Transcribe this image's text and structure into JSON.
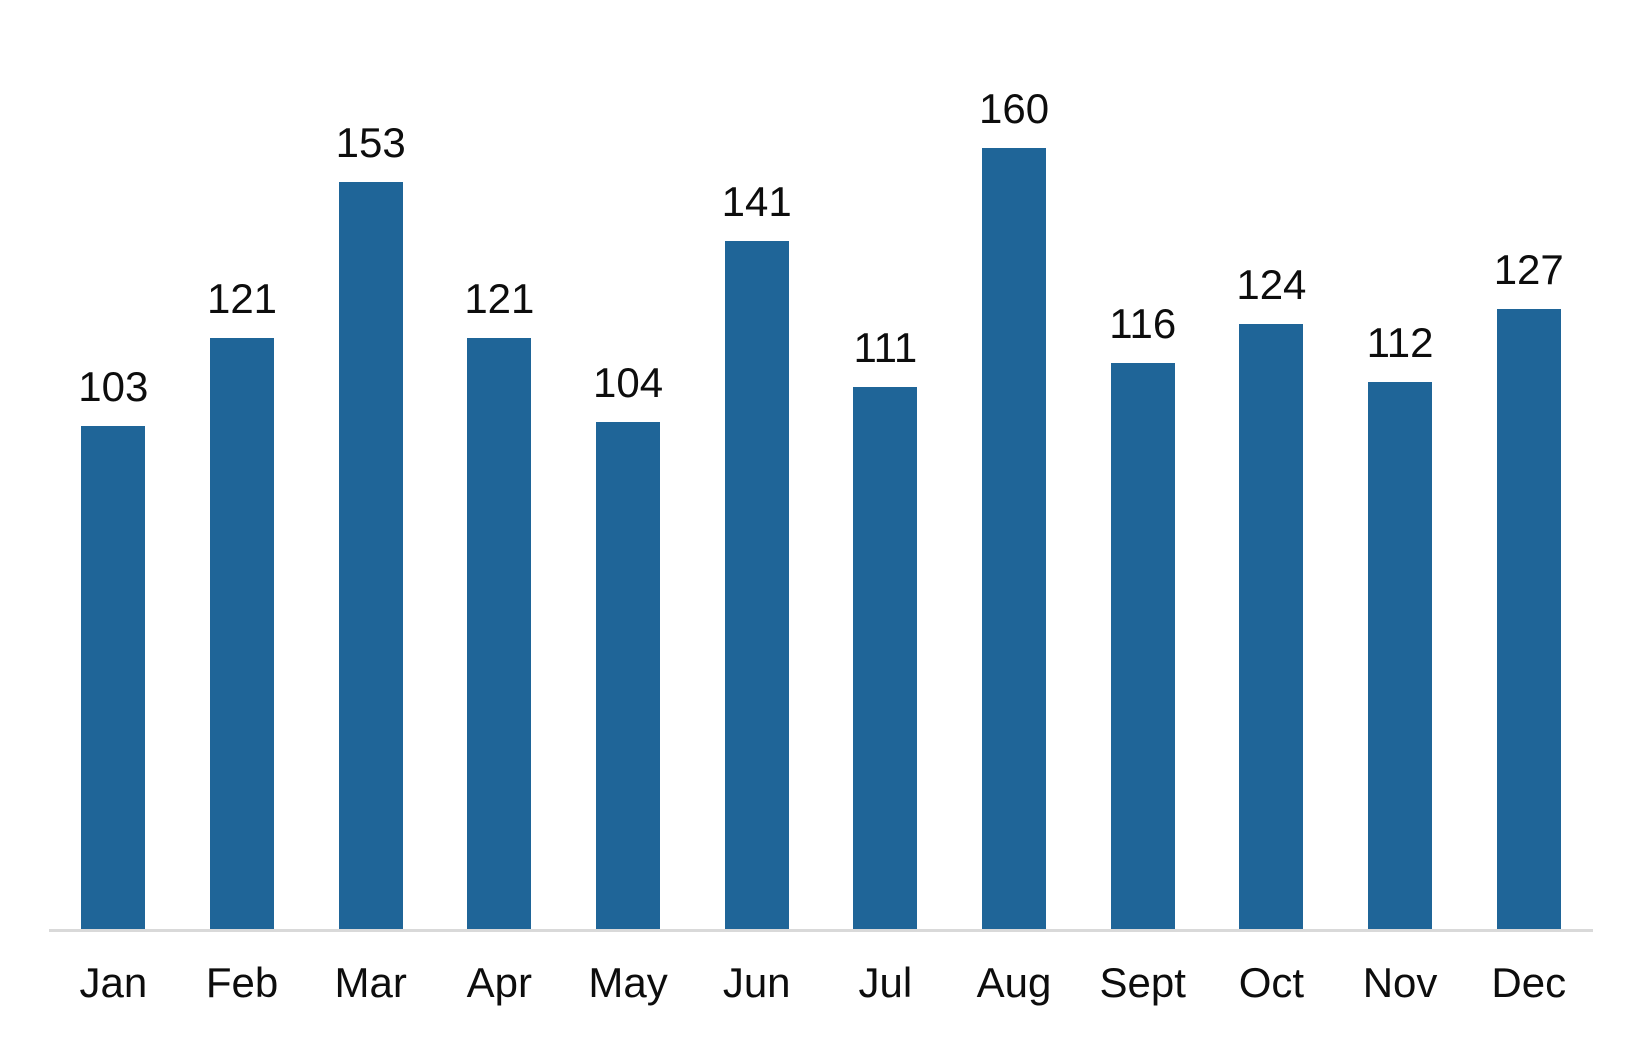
{
  "chart_data": {
    "type": "bar",
    "categories": [
      "Jan",
      "Feb",
      "Mar",
      "Apr",
      "May",
      "Jun",
      "Jul",
      "Aug",
      "Sept",
      "Oct",
      "Nov",
      "Dec"
    ],
    "values": [
      103,
      121,
      153,
      121,
      104,
      141,
      111,
      160,
      116,
      124,
      112,
      127
    ],
    "title": "",
    "xlabel": "",
    "ylabel": "",
    "ylim": [
      0,
      180
    ],
    "grid": false,
    "y_axis_visible": false,
    "data_labels_position": "outside-end",
    "legend": "none",
    "bar_color": "#1F6598",
    "axis_line_color": "#D9D9D9",
    "label_color": "#0D0D0D",
    "background_color": "#FFFFFF"
  }
}
